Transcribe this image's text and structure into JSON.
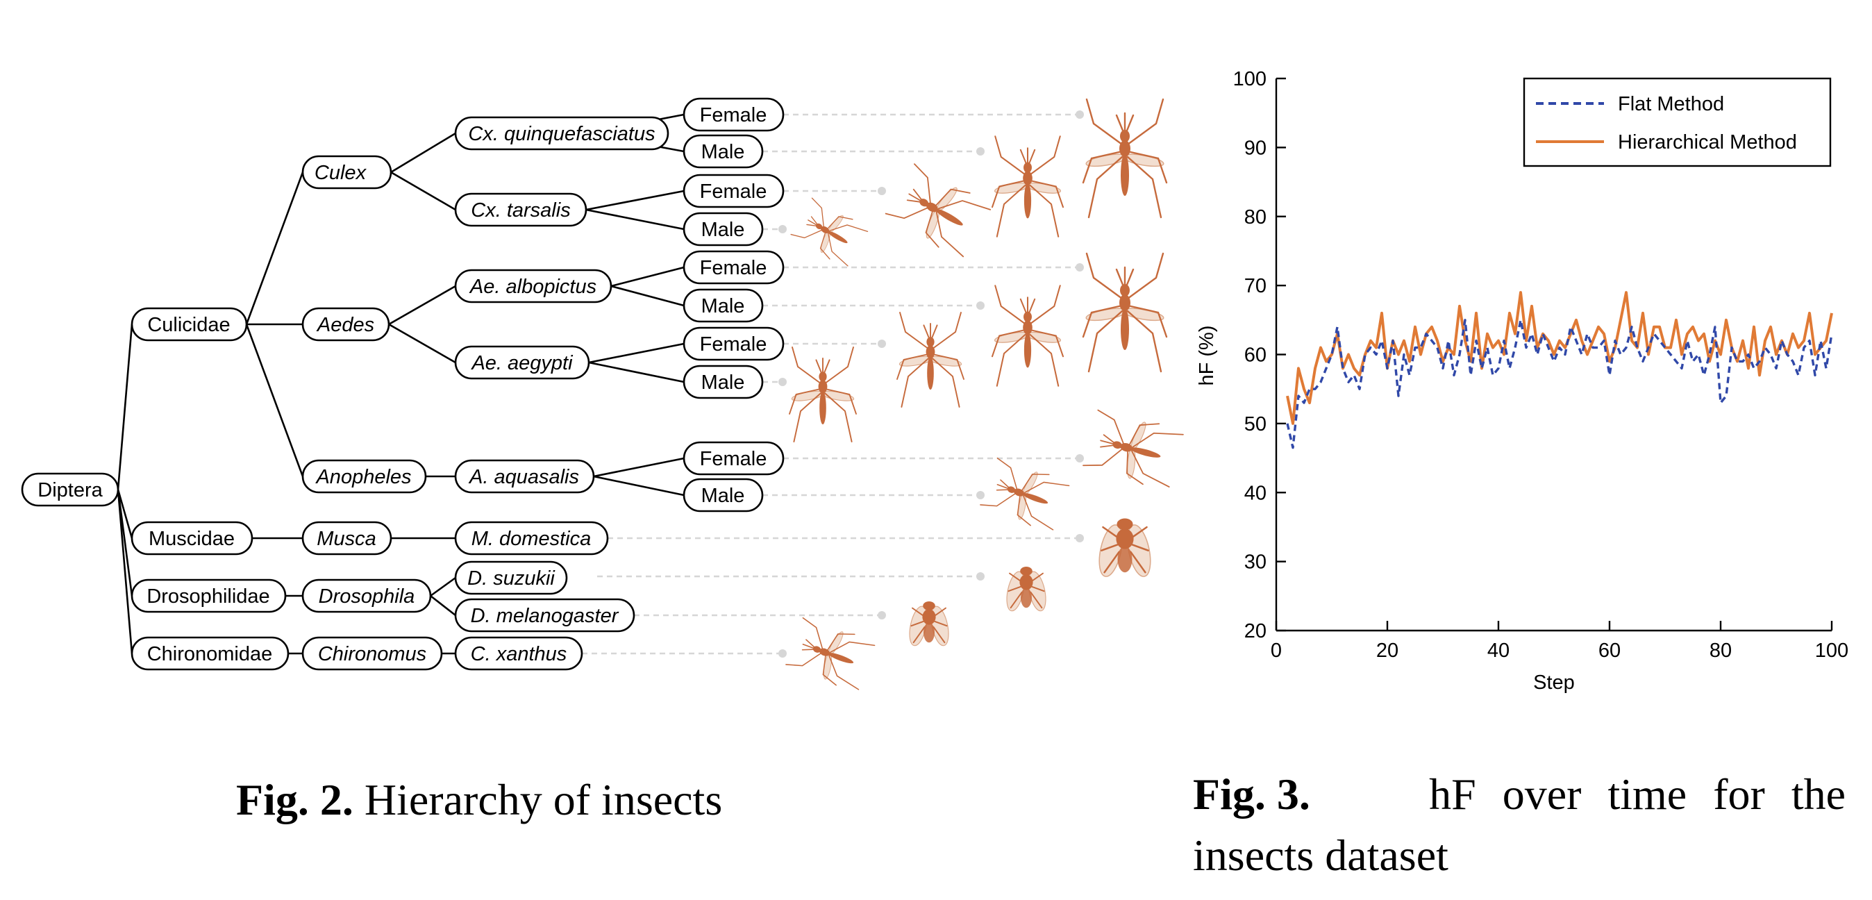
{
  "tree": {
    "root": "Diptera",
    "families": [
      "Culicidae",
      "Muscidae",
      "Drosophilidae",
      "Chironomidae"
    ],
    "genera": [
      "Culex",
      "Aedes",
      "Anopheles",
      "Musca",
      "Drosophila",
      "Chironomus"
    ],
    "species": [
      "Cx. quinquefasciatus",
      "Cx. tarsalis",
      "Ae. albopictus",
      "Ae. aegypti",
      "A. aquasalis",
      "M. domestica",
      "D. suzukii",
      "D. melanogaster",
      "C. xanthus"
    ],
    "sex_labels": {
      "female": "Female",
      "male": "Male"
    }
  },
  "captions": {
    "fig2_label": "Fig. 2.",
    "fig2_text": "Hierarchy of insects",
    "fig3_label": "Fig. 3.",
    "fig3_text_line1": "hF over time for the",
    "fig3_text_line2": "insects dataset"
  },
  "colors": {
    "flat": "#3048a8",
    "hierarchical": "#e07a35",
    "insect": "#c66a3c"
  },
  "chart_data": {
    "type": "line",
    "title": "",
    "xlabel": "Step",
    "ylabel": "hF (%)",
    "xlim": [
      0,
      100
    ],
    "ylim": [
      20,
      100
    ],
    "xticks": [
      0,
      20,
      40,
      60,
      80,
      100
    ],
    "yticks": [
      20,
      30,
      40,
      50,
      60,
      70,
      80,
      90,
      100
    ],
    "legend_position": "top-right",
    "x": [
      2,
      3,
      4,
      5,
      6,
      7,
      8,
      9,
      10,
      11,
      12,
      13,
      14,
      15,
      16,
      17,
      18,
      19,
      20,
      21,
      22,
      23,
      24,
      25,
      26,
      27,
      28,
      29,
      30,
      31,
      32,
      33,
      34,
      35,
      36,
      37,
      38,
      39,
      40,
      41,
      42,
      43,
      44,
      45,
      46,
      47,
      48,
      49,
      50,
      51,
      52,
      53,
      54,
      55,
      56,
      57,
      58,
      59,
      60,
      61,
      62,
      63,
      64,
      65,
      66,
      67,
      68,
      69,
      70,
      71,
      72,
      73,
      74,
      75,
      76,
      77,
      78,
      79,
      80,
      81,
      82,
      83,
      84,
      85,
      86,
      87,
      88,
      89,
      90,
      91,
      92,
      93,
      94,
      95,
      96,
      97,
      98,
      99,
      100
    ],
    "series": [
      {
        "name": "Flat Method",
        "style": "dashed",
        "values": [
          50,
          46.5,
          54,
          53,
          55,
          55,
          56,
          58,
          60,
          64,
          58,
          56,
          57,
          55,
          60,
          61,
          60,
          62,
          58,
          62,
          54,
          60,
          57,
          61,
          61,
          63,
          62,
          61,
          58,
          62,
          57,
          60,
          65,
          57,
          62,
          58,
          61,
          57,
          58,
          62,
          58,
          61,
          65,
          61,
          63,
          60,
          63,
          61,
          59,
          61,
          60,
          64,
          62,
          60,
          63,
          61,
          61,
          62,
          57,
          62,
          60,
          61,
          64,
          61,
          59,
          61,
          63,
          62,
          61,
          60,
          59,
          58,
          62,
          59,
          60,
          57,
          60,
          64,
          53,
          54,
          61,
          59,
          59,
          60,
          58,
          59,
          61,
          60,
          58,
          62,
          60,
          59,
          57,
          61,
          62,
          57,
          62,
          58,
          63
        ]
      },
      {
        "name": "Hierarchical Method",
        "style": "solid",
        "values": [
          54,
          50,
          58,
          55,
          53,
          58,
          61,
          59,
          60,
          63,
          58,
          60,
          58,
          57,
          60,
          62,
          61,
          66,
          58,
          62,
          60,
          62,
          59,
          64,
          60,
          63,
          64,
          62,
          59,
          61,
          60,
          67,
          62,
          59,
          66,
          58,
          63,
          61,
          62,
          60,
          66,
          63,
          69,
          62,
          67,
          61,
          63,
          62,
          60,
          62,
          61,
          63,
          65,
          62,
          60,
          62,
          64,
          63,
          59,
          61,
          65,
          69,
          62,
          61,
          66,
          60,
          64,
          64,
          61,
          61,
          65,
          60,
          63,
          64,
          62,
          63,
          59,
          62,
          60,
          65,
          61,
          59,
          62,
          58,
          64,
          57,
          62,
          64,
          60,
          62,
          60,
          63,
          61,
          62,
          66,
          60,
          61,
          62,
          66
        ]
      }
    ]
  }
}
